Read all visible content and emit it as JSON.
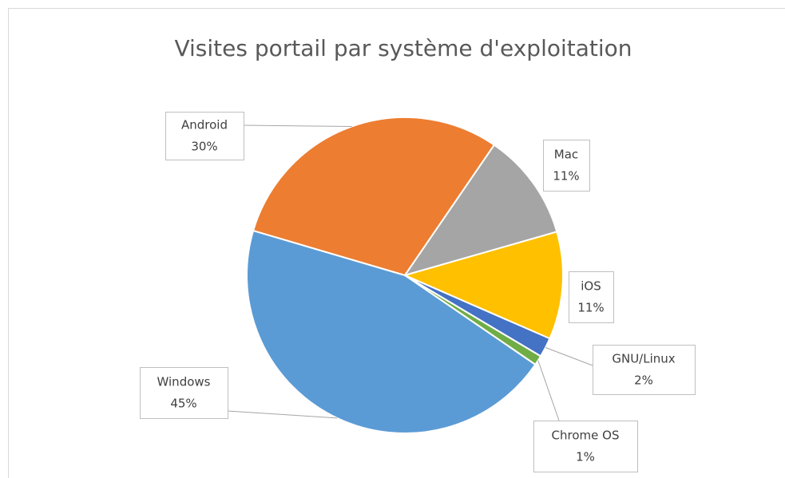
{
  "chart_data": {
    "type": "pie",
    "title": "Visites portail par système d'exploitation",
    "categories": [
      "Android",
      "Mac",
      "iOS",
      "GNU/Linux",
      "Chrome OS",
      "Windows"
    ],
    "values": [
      30,
      11,
      11,
      2,
      1,
      45
    ],
    "value_labels": [
      "30%",
      "11%",
      "11%",
      "2%",
      "1%",
      "45%"
    ],
    "colors": [
      "#ed7d31",
      "#a5a5a5",
      "#ffc000",
      "#4472c4",
      "#70ad47",
      "#5b9bd5"
    ]
  }
}
